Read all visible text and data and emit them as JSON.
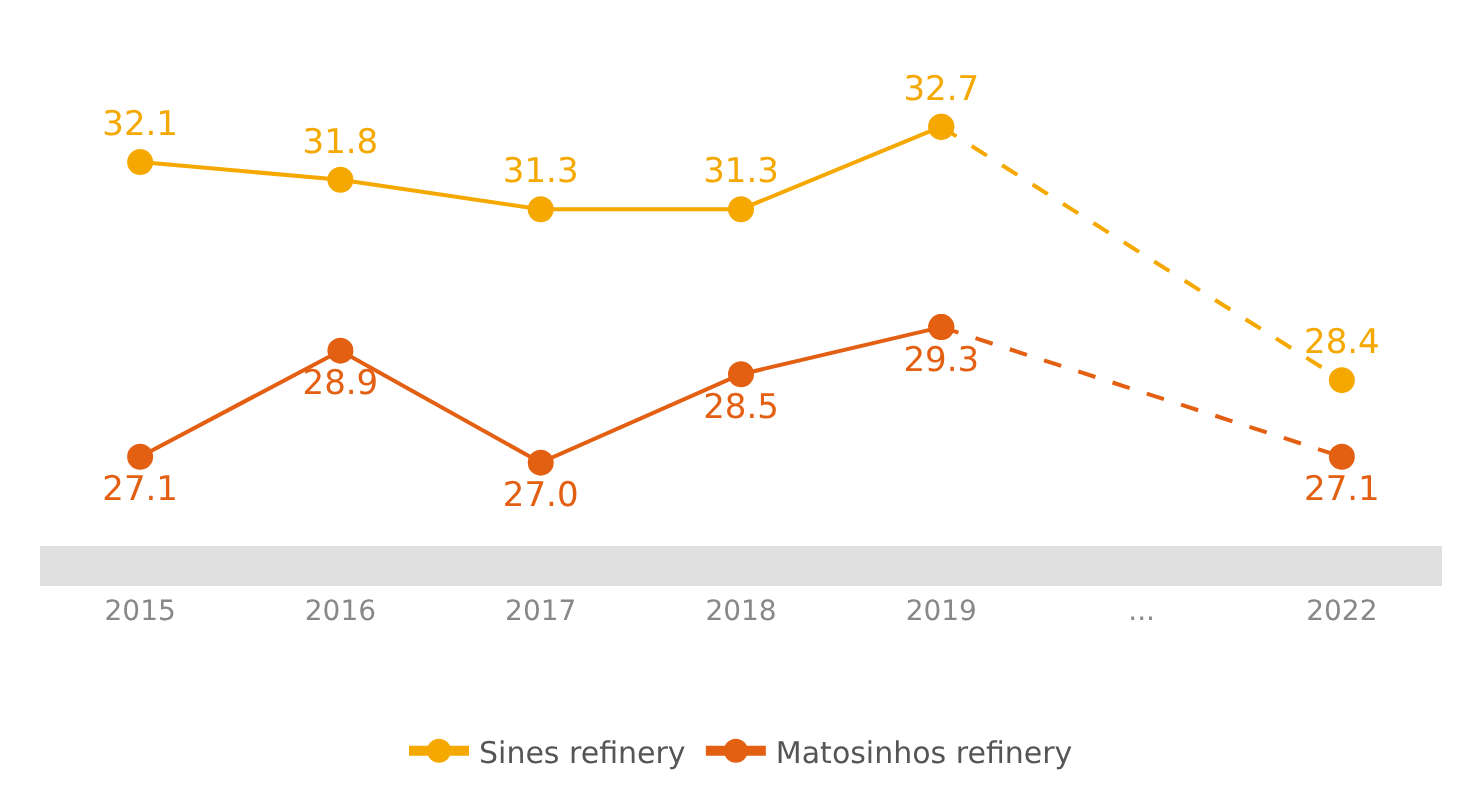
{
  "chart_data": {
    "type": "line",
    "categories": [
      "2015",
      "2016",
      "2017",
      "2018",
      "2019",
      "...",
      "2022"
    ],
    "series": [
      {
        "name": "Sines refinery",
        "color": "#f5a800",
        "values": [
          32.1,
          31.8,
          31.3,
          31.3,
          32.7,
          null,
          null
        ],
        "value_labels": [
          "32.1",
          "31.8",
          "31.3",
          "31.3",
          "32.7",
          null,
          null
        ],
        "line_style": "solid"
      },
      {
        "color": "#f5a800",
        "values": [
          null,
          null,
          null,
          null,
          32.7,
          null,
          28.4
        ],
        "value_labels": [
          null,
          null,
          null,
          null,
          null,
          null,
          "28.4"
        ],
        "line_style": "dashed"
      },
      {
        "name": "Matosinhos refinery",
        "color": "#e35f12",
        "values": [
          27.1,
          28.9,
          27.0,
          28.5,
          29.3,
          null,
          null
        ],
        "value_labels": [
          "27.1",
          "28.9",
          "27.0",
          "28.5",
          "29.3",
          null,
          null
        ],
        "line_style": "solid"
      },
      {
        "color": "#e35f12",
        "values": [
          null,
          null,
          null,
          null,
          29.3,
          null,
          27.1
        ],
        "value_labels": [
          null,
          null,
          null,
          null,
          null,
          null,
          "27.1"
        ],
        "line_style": "dashed"
      }
    ],
    "tick_labels": "x",
    "marker": "circle",
    "grid": false,
    "legend": "bottom"
  }
}
